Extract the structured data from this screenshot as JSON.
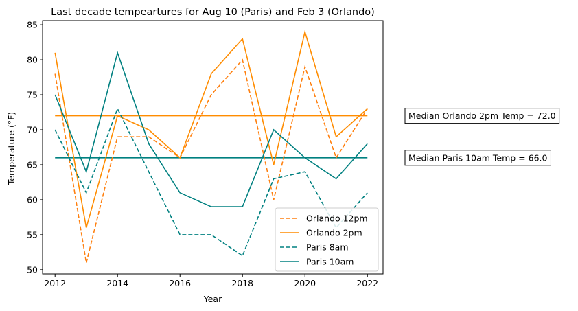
{
  "chart_data": {
    "type": "line",
    "title": "Last decade tempeartures for Aug 10 (Paris) and Feb 3 (Orlando)",
    "xlabel": "Year",
    "ylabel": "Temperature (°F)",
    "xlim": [
      2011.6,
      2022.5
    ],
    "ylim": [
      49.4,
      85.6
    ],
    "x_ticks": [
      2012,
      2014,
      2016,
      2018,
      2020,
      2022
    ],
    "y_ticks": [
      50,
      55,
      60,
      65,
      70,
      75,
      80,
      85
    ],
    "grid": false,
    "legend_position": "lower-right",
    "x": [
      2012,
      2013,
      2014,
      2015,
      2016,
      2017,
      2018,
      2019,
      2020,
      2021,
      2022
    ],
    "series": [
      {
        "name": "Orlando 12pm",
        "color": "#ff7f0e",
        "dashed": true,
        "values": [
          78,
          51,
          69,
          69,
          66,
          75,
          80,
          60,
          79,
          66,
          73
        ]
      },
      {
        "name": "Orlando 2pm",
        "color": "#ff8c00",
        "dashed": false,
        "values": [
          81,
          56,
          72,
          70,
          66,
          78,
          83,
          65,
          84,
          69,
          73
        ]
      },
      {
        "name": "Paris 8am",
        "color": "#008080",
        "dashed": true,
        "values": [
          70,
          61,
          73,
          64,
          55,
          55,
          52,
          63,
          64,
          56,
          61
        ]
      },
      {
        "name": "Paris 10am",
        "color": "#008080",
        "dashed": false,
        "values": [
          75,
          64,
          81,
          68,
          61,
          59,
          59,
          70,
          66,
          63,
          68
        ]
      }
    ],
    "reference_lines": [
      {
        "value": 72.0,
        "color": "#ff8c00"
      },
      {
        "value": 66.0,
        "color": "#008080"
      }
    ],
    "annotations": [
      {
        "text": "Median Orlando 2pm Temp = 72.0",
        "anchor_value": 72.0
      },
      {
        "text": "Median Paris 10am Temp = 66.0",
        "anchor_value": 66.0
      }
    ]
  }
}
